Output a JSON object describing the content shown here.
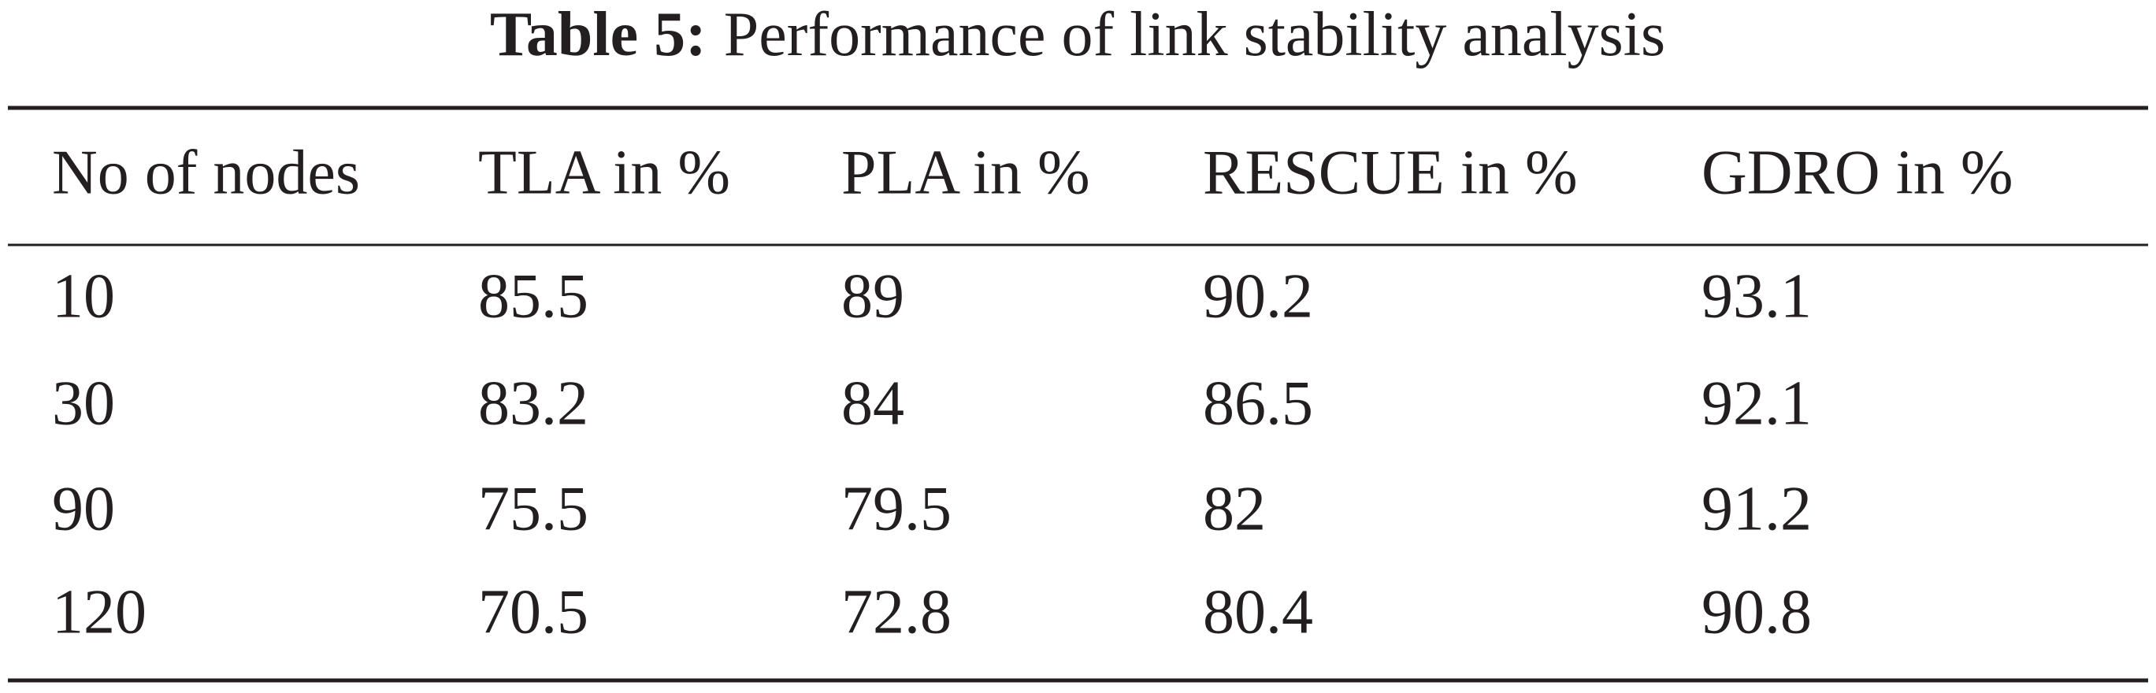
{
  "caption": {
    "label": "Table 5:",
    "title": "Performance of link stability analysis"
  },
  "table": {
    "header": [
      "No of nodes",
      "TLA in %",
      "PLA in %",
      "RESCUE in %",
      "GDRO in %"
    ],
    "rows": [
      [
        10,
        85.5,
        89,
        90.2,
        93.1
      ],
      [
        30,
        83.2,
        84,
        86.5,
        92.1
      ],
      [
        90,
        75.5,
        79.5,
        82,
        91.2
      ],
      [
        120,
        70.5,
        72.8,
        80.4,
        90.8
      ]
    ]
  }
}
